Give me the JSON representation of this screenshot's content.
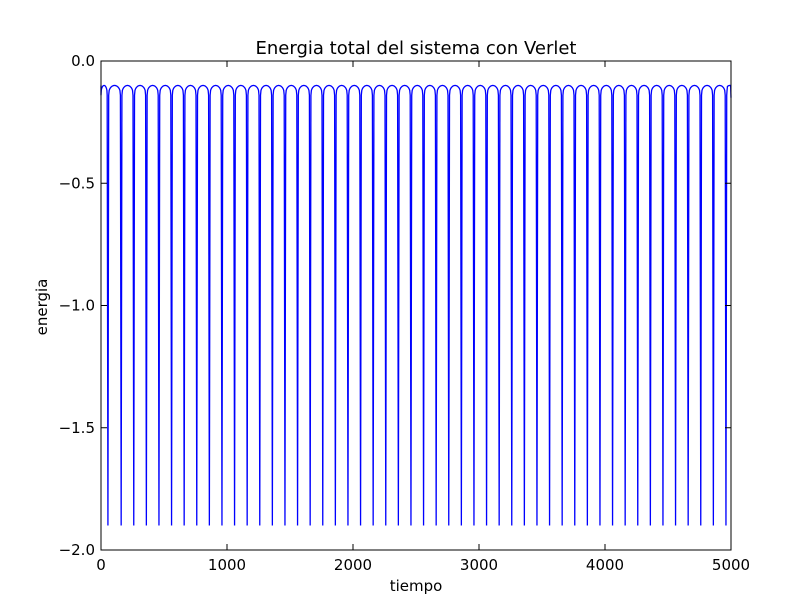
{
  "chart_data": {
    "type": "line",
    "title": "Energia total del sistema con Verlet",
    "xlabel": "tiempo",
    "ylabel": "energia",
    "xlim": [
      0,
      5000
    ],
    "ylim": [
      -2.0,
      0.0
    ],
    "xticks": [
      0,
      1000,
      2000,
      3000,
      4000,
      5000
    ],
    "xtick_labels": [
      "0",
      "1000",
      "2000",
      "3000",
      "4000",
      "5000"
    ],
    "yticks": [
      0.0,
      -0.5,
      -1.0,
      -1.5,
      -2.0
    ],
    "ytick_labels": [
      "0.0",
      "−0.5",
      "−1.0",
      "−1.5",
      "−2.0"
    ],
    "grid": false,
    "series": [
      {
        "color": "#0000ff",
        "baseline": -0.1,
        "min": -1.9,
        "x_start": 0,
        "x_end": 5000,
        "dip_times": [
          55,
          160,
          260,
          360,
          460,
          560,
          660,
          760,
          860,
          960,
          1060,
          1160,
          1260,
          1360,
          1460,
          1560,
          1660,
          1760,
          1860,
          1960,
          2060,
          2160,
          2260,
          2360,
          2460,
          2560,
          2660,
          2760,
          2860,
          2960,
          3060,
          3160,
          3260,
          3360,
          3460,
          3560,
          3660,
          3760,
          3860,
          3960,
          4060,
          4160,
          4260,
          4360,
          4460,
          4560,
          4660,
          4760,
          4860,
          4960
        ],
        "end_value": -0.15
      }
    ]
  }
}
